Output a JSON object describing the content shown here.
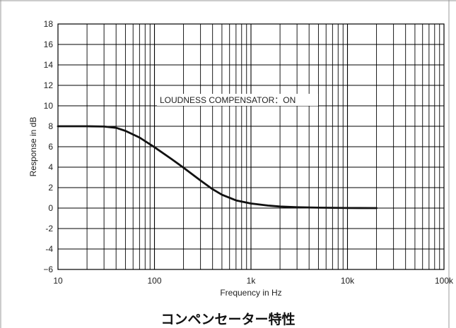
{
  "caption": "コンペンセーター特性",
  "chart_data": {
    "type": "line",
    "title": "",
    "annotation": "LOUDNESS COMPENSATOR：ON",
    "xlabel": "Frequency in Hz",
    "ylabel": "Response in dB",
    "xscale": "log",
    "xlim": [
      10,
      100000
    ],
    "ylim": [
      -6,
      18
    ],
    "grid": true,
    "line_color": "#111111",
    "x_tick_labels": [
      {
        "value": 10,
        "label": "10"
      },
      {
        "value": 100,
        "label": "100"
      },
      {
        "value": 1000,
        "label": "1k"
      },
      {
        "value": 10000,
        "label": "10k"
      },
      {
        "value": 100000,
        "label": "100k"
      }
    ],
    "y_tick_labels": [
      {
        "value": 18,
        "label": "18"
      },
      {
        "value": 16,
        "label": "16"
      },
      {
        "value": 14,
        "label": "14"
      },
      {
        "value": 12,
        "label": "12"
      },
      {
        "value": 10,
        "label": "10"
      },
      {
        "value": 8,
        "label": "8"
      },
      {
        "value": 6,
        "label": "6"
      },
      {
        "value": 4,
        "label": "4"
      },
      {
        "value": 2,
        "label": "2"
      },
      {
        "value": 0,
        "label": "0"
      },
      {
        "value": -2,
        "label": "-2"
      },
      {
        "value": -4,
        "label": "-4"
      },
      {
        "value": -6,
        "label": "−6"
      }
    ],
    "series": [
      {
        "x": [
          10,
          20,
          30,
          40,
          50,
          70,
          100,
          150,
          200,
          300,
          400,
          500,
          700,
          1000,
          1500,
          2000,
          3000,
          5000,
          10000,
          20000
        ],
        "y": [
          8.0,
          8.0,
          7.97,
          7.85,
          7.55,
          6.9,
          5.95,
          4.8,
          3.95,
          2.7,
          1.85,
          1.3,
          0.75,
          0.45,
          0.25,
          0.15,
          0.08,
          0.04,
          0.01,
          0.0
        ]
      }
    ]
  }
}
